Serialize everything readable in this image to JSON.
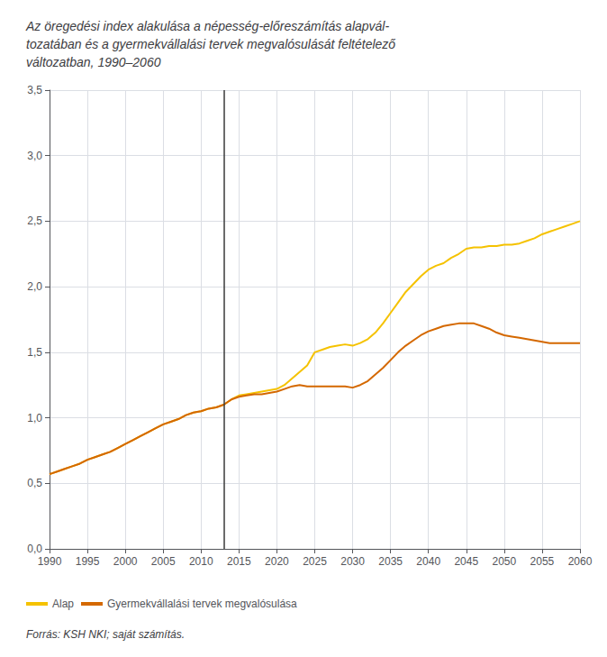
{
  "chart_data": {
    "type": "line",
    "title": "Az öregedési index alakulása a népesség-előreszámítás alapvál-\ntozatában és a gyermekvállalási tervek megvalósulását feltételező\nváltozatban, 1990–2060",
    "source": "Forrás: KSH NKI; saját számítás.",
    "series": [
      {
        "name": "Alap",
        "color": "#f5c200",
        "x": [
          1990,
          1991,
          1992,
          1993,
          1994,
          1995,
          1996,
          1997,
          1998,
          1999,
          2000,
          2001,
          2002,
          2003,
          2004,
          2005,
          2006,
          2007,
          2008,
          2009,
          2010,
          2011,
          2012,
          2013,
          2013,
          2014,
          2015,
          2016,
          2017,
          2018,
          2019,
          2020,
          2021,
          2022,
          2023,
          2024,
          2025,
          2026,
          2027,
          2028,
          2029,
          2030,
          2031,
          2032,
          2033,
          2034,
          2035,
          2036,
          2037,
          2038,
          2039,
          2040,
          2041,
          2042,
          2043,
          2044,
          2045,
          2046,
          2047,
          2048,
          2049,
          2050,
          2051,
          2052,
          2053,
          2054,
          2055,
          2056,
          2057,
          2058,
          2059,
          2060
        ],
        "values": [
          0.57,
          0.59,
          0.61,
          0.63,
          0.65,
          0.68,
          0.7,
          0.72,
          0.74,
          0.77,
          0.8,
          0.83,
          0.86,
          0.89,
          0.92,
          0.95,
          0.97,
          0.99,
          1.02,
          1.04,
          1.05,
          1.07,
          1.08,
          1.1,
          1.1,
          1.14,
          1.17,
          1.18,
          1.19,
          1.2,
          1.21,
          1.22,
          1.25,
          1.3,
          1.35,
          1.4,
          1.5,
          1.52,
          1.54,
          1.55,
          1.56,
          1.55,
          1.57,
          1.6,
          1.65,
          1.72,
          1.8,
          1.88,
          1.96,
          2.02,
          2.08,
          2.13,
          2.16,
          2.18,
          2.22,
          2.25,
          2.29,
          2.3,
          2.3,
          2.31,
          2.31,
          2.32,
          2.32,
          2.33,
          2.35,
          2.37,
          2.4,
          2.42,
          2.44,
          2.46,
          2.48,
          2.5
        ]
      },
      {
        "name": "Gyermekvállalási tervek megvalósulása",
        "color": "#d46800",
        "x": [
          1990,
          1991,
          1992,
          1993,
          1994,
          1995,
          1996,
          1997,
          1998,
          1999,
          2000,
          2001,
          2002,
          2003,
          2004,
          2005,
          2006,
          2007,
          2008,
          2009,
          2010,
          2011,
          2012,
          2013,
          2013,
          2014,
          2015,
          2016,
          2017,
          2018,
          2019,
          2020,
          2021,
          2022,
          2023,
          2024,
          2025,
          2026,
          2027,
          2028,
          2029,
          2030,
          2031,
          2032,
          2033,
          2034,
          2035,
          2036,
          2037,
          2038,
          2039,
          2040,
          2041,
          2042,
          2043,
          2044,
          2045,
          2046,
          2047,
          2048,
          2049,
          2050,
          2051,
          2052,
          2053,
          2054,
          2055,
          2056,
          2057,
          2058,
          2059,
          2060
        ],
        "values": [
          0.57,
          0.59,
          0.61,
          0.63,
          0.65,
          0.68,
          0.7,
          0.72,
          0.74,
          0.77,
          0.8,
          0.83,
          0.86,
          0.89,
          0.92,
          0.95,
          0.97,
          0.99,
          1.02,
          1.04,
          1.05,
          1.07,
          1.08,
          1.1,
          1.1,
          1.14,
          1.16,
          1.17,
          1.18,
          1.18,
          1.19,
          1.2,
          1.22,
          1.24,
          1.25,
          1.24,
          1.24,
          1.24,
          1.24,
          1.24,
          1.24,
          1.23,
          1.25,
          1.28,
          1.33,
          1.38,
          1.44,
          1.5,
          1.55,
          1.59,
          1.63,
          1.66,
          1.68,
          1.7,
          1.71,
          1.72,
          1.72,
          1.72,
          1.7,
          1.68,
          1.65,
          1.63,
          1.62,
          1.61,
          1.6,
          1.59,
          1.58,
          1.57,
          1.57,
          1.57,
          1.57,
          1.57
        ]
      }
    ],
    "vlines": [
      2013
    ],
    "xlim": [
      1990,
      2060
    ],
    "xticks": [
      1990,
      1995,
      2000,
      2005,
      2010,
      2015,
      2020,
      2025,
      2030,
      2035,
      2040,
      2045,
      2050,
      2055,
      2060
    ],
    "ylim": [
      0.0,
      3.5
    ],
    "yticks": [
      {
        "value": 0.0,
        "label": "0,0"
      },
      {
        "value": 0.5,
        "label": "0,5"
      },
      {
        "value": 1.0,
        "label": "1,0"
      },
      {
        "value": 1.5,
        "label": "1,5"
      },
      {
        "value": 2.0,
        "label": "2,0"
      },
      {
        "value": 2.5,
        "label": "2,5"
      },
      {
        "value": 3.0,
        "label": "3,0"
      },
      {
        "value": 3.5,
        "label": "3,5"
      }
    ],
    "grid": true,
    "legend": "bottom"
  }
}
